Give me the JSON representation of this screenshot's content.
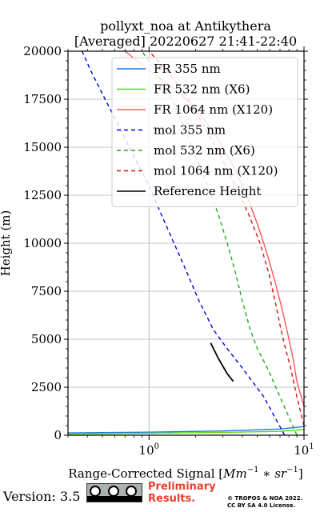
{
  "chart_data": {
    "type": "line",
    "title": "pollyxt_noa at Antikythera",
    "subtitle": "[Averaged] 20220627 21:41-22:40",
    "xlabel": "Range-Corrected Signal [",
    "xlabel_math": "Mm",
    "xlabel_exp1": "−1",
    "xlabel_star": " ∗ sr",
    "xlabel_exp2": "−1",
    "xlabel_close": "]",
    "ylabel": "Height (m)",
    "xscale": "log",
    "xlim": [
      0.3,
      10
    ],
    "ylim": [
      0,
      20000
    ],
    "grid": true,
    "x_ticks": [
      {
        "value": 1,
        "base": "10",
        "exp": "0"
      },
      {
        "value": 10,
        "base": "10",
        "exp": "1"
      }
    ],
    "y_ticks": [
      0,
      2500,
      5000,
      7500,
      10000,
      12500,
      15000,
      17500,
      20000
    ],
    "legend_position": "top-right",
    "series": [
      {
        "name": "FR 355 nm",
        "style": "solid",
        "color": "#1f77e8",
        "points": [
          [
            0.3,
            120
          ],
          [
            1,
            160
          ],
          [
            3,
            220
          ],
          [
            7,
            320
          ],
          [
            10,
            450
          ]
        ]
      },
      {
        "name": "FR 532 nm (X6)",
        "style": "solid",
        "color": "#55e000",
        "points": [
          [
            0.3,
            60
          ],
          [
            1,
            100
          ],
          [
            3,
            150
          ],
          [
            7,
            200
          ],
          [
            10,
            300
          ]
        ]
      },
      {
        "name": "FR 1064 nm (X120)",
        "style": "solid",
        "color": "#ff5555",
        "points": [
          [
            10,
            1500
          ],
          [
            9,
            2800
          ],
          [
            8.5,
            4000
          ],
          [
            8,
            5000
          ],
          [
            7.5,
            6000
          ],
          [
            7,
            7000
          ],
          [
            6.5,
            8000
          ],
          [
            6,
            9000
          ],
          [
            5.5,
            10000
          ],
          [
            5,
            11000
          ],
          [
            4.5,
            12000
          ],
          [
            4,
            13000
          ],
          [
            3.5,
            14000
          ],
          [
            3,
            15000
          ],
          [
            2.5,
            16000
          ],
          [
            2,
            17000
          ],
          [
            1.5,
            18000
          ],
          [
            1,
            19000
          ],
          [
            0.7,
            20000
          ]
        ]
      },
      {
        "name": "mol 355 nm",
        "style": "dashed",
        "color": "#0000dd",
        "points": [
          [
            7.5,
            0
          ],
          [
            5.5,
            2000
          ],
          [
            4,
            3500
          ],
          [
            3.2,
            4500
          ],
          [
            2.6,
            5500
          ],
          [
            2.1,
            7000
          ],
          [
            1.75,
            8500
          ],
          [
            1.45,
            10000
          ],
          [
            1.2,
            11500
          ],
          [
            1.0,
            13000
          ],
          [
            0.8,
            14500
          ],
          [
            0.65,
            16000
          ],
          [
            0.52,
            17500
          ],
          [
            0.42,
            19000
          ],
          [
            0.37,
            20000
          ]
        ]
      },
      {
        "name": "mol 532 nm (X6)",
        "style": "dashed",
        "color": "#22aa22",
        "points": [
          [
            9,
            0
          ],
          [
            7,
            2000
          ],
          [
            5.8,
            3500
          ],
          [
            5,
            4500
          ],
          [
            4.5,
            5500
          ],
          [
            4,
            7000
          ],
          [
            3.6,
            8500
          ],
          [
            3.2,
            10000
          ],
          [
            2.8,
            11500
          ],
          [
            2.4,
            13000
          ],
          [
            2.0,
            14500
          ],
          [
            1.7,
            16000
          ],
          [
            1.4,
            17500
          ],
          [
            1.1,
            19000
          ],
          [
            0.9,
            20000
          ]
        ]
      },
      {
        "name": "mol 1064 nm (X120)",
        "style": "dashed",
        "color": "#dd1111",
        "points": [
          [
            10,
            500
          ],
          [
            9,
            2000
          ],
          [
            8.2,
            3500
          ],
          [
            7.6,
            4500
          ],
          [
            7.1,
            5500
          ],
          [
            6.5,
            7000
          ],
          [
            5.9,
            8500
          ],
          [
            5.2,
            10000
          ],
          [
            4.4,
            11500
          ],
          [
            3.6,
            13000
          ],
          [
            2.9,
            14500
          ],
          [
            2.3,
            16000
          ],
          [
            1.8,
            17500
          ],
          [
            1.3,
            19000
          ],
          [
            1.0,
            20000
          ]
        ]
      },
      {
        "name": "Reference Height",
        "style": "solid",
        "color": "#000000",
        "points": [
          [
            2.5,
            4800
          ],
          [
            2.8,
            4000
          ],
          [
            3.2,
            3200
          ],
          [
            3.5,
            2800
          ]
        ]
      }
    ]
  },
  "footer": {
    "version": "Version: 3.5",
    "license_badge": "BY SA",
    "preliminary_line1": "Preliminary",
    "preliminary_line2": "Results.",
    "copyright_line1": "© TROPOS & NOA 2022.",
    "copyright_line2": "CC BY SA 4.0 License."
  }
}
